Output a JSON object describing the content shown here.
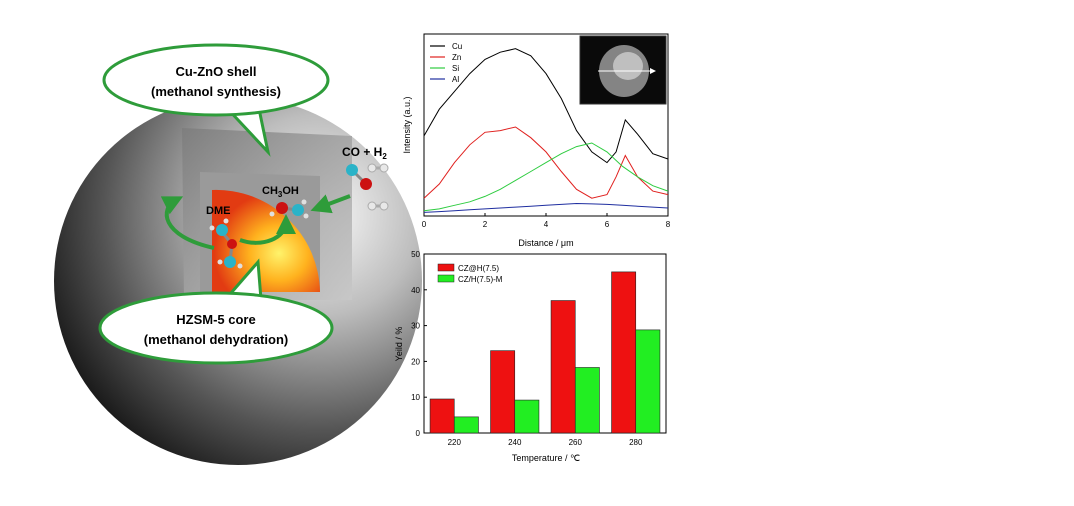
{
  "illustration": {
    "shell_title": "Cu-ZnO shell",
    "shell_sub": "(methanol synthesis)",
    "core_title": "HZSM-5 core",
    "core_sub": "(methanol dehydration)",
    "dme": "DME",
    "methanol": "CH",
    "methanol_sub": "3",
    "methanol_tail": "OH",
    "feed_co": "CO + H",
    "feed_h2_sub": "2",
    "colors": {
      "bubble_border": "#2e9c3a",
      "arrow": "#2e9c3a",
      "carbon": "#2ab3c8",
      "oxygen": "#cc1111",
      "hydrogen": "#d8d8d8"
    }
  },
  "chart_data": [
    {
      "type": "line",
      "xlabel": "Distance / μm",
      "ylabel": "Intensity (a.u.)",
      "xlim": [
        0,
        8
      ],
      "xticks": [
        "0",
        "2",
        "4",
        "6",
        "8"
      ],
      "legend_position": "top-left",
      "inset": "SEM image of particle (line scan)",
      "series": [
        {
          "name": "Cu",
          "color": "#000000",
          "x": [
            0,
            0.5,
            1,
            1.5,
            2,
            2.5,
            3,
            3.5,
            4,
            4.5,
            5,
            5.5,
            6,
            6.3,
            6.6,
            7,
            7.5,
            8
          ],
          "y": [
            0.45,
            0.6,
            0.7,
            0.8,
            0.88,
            0.92,
            0.94,
            0.9,
            0.8,
            0.66,
            0.48,
            0.36,
            0.3,
            0.36,
            0.54,
            0.46,
            0.35,
            0.32
          ]
        },
        {
          "name": "Zn",
          "color": "#e0201e",
          "x": [
            0,
            0.5,
            1,
            1.5,
            2,
            2.5,
            3,
            3.5,
            4,
            4.5,
            5,
            5.5,
            6,
            6.3,
            6.6,
            7,
            7.5,
            8
          ],
          "y": [
            0.1,
            0.18,
            0.3,
            0.4,
            0.47,
            0.48,
            0.5,
            0.44,
            0.36,
            0.25,
            0.15,
            0.1,
            0.12,
            0.22,
            0.34,
            0.22,
            0.14,
            0.12
          ]
        },
        {
          "name": "Si",
          "color": "#2ecc40",
          "x": [
            0,
            0.5,
            1,
            1.5,
            2,
            2.5,
            3,
            3.5,
            4,
            4.5,
            5,
            5.5,
            6,
            6.5,
            7,
            7.5,
            8
          ],
          "y": [
            0.03,
            0.04,
            0.06,
            0.08,
            0.11,
            0.15,
            0.2,
            0.25,
            0.3,
            0.35,
            0.39,
            0.41,
            0.36,
            0.28,
            0.22,
            0.17,
            0.14
          ]
        },
        {
          "name": "Al",
          "color": "#1f2ea0",
          "x": [
            0,
            0.5,
            1,
            1.5,
            2,
            2.5,
            3,
            3.5,
            4,
            4.5,
            5,
            5.5,
            6,
            6.5,
            7,
            7.5,
            8
          ],
          "y": [
            0.02,
            0.025,
            0.03,
            0.035,
            0.04,
            0.045,
            0.05,
            0.055,
            0.06,
            0.065,
            0.07,
            0.068,
            0.065,
            0.06,
            0.055,
            0.05,
            0.045
          ]
        }
      ]
    },
    {
      "type": "bar",
      "xlabel": "Temperature / ℃",
      "ylabel": "Yeild / %",
      "categories": [
        "220",
        "240",
        "260",
        "280"
      ],
      "ylim": [
        0,
        50
      ],
      "yticks": [
        "0",
        "10",
        "20",
        "30",
        "40",
        "50"
      ],
      "legend_position": "top-left",
      "series": [
        {
          "name": "CZ@H(7.5)",
          "color": "#ee1111",
          "values": [
            9.5,
            23,
            37,
            45
          ]
        },
        {
          "name": "CZ/H(7.5)-M",
          "color": "#22ee22",
          "values": [
            4.5,
            9.2,
            18.3,
            28.8
          ]
        }
      ]
    }
  ]
}
